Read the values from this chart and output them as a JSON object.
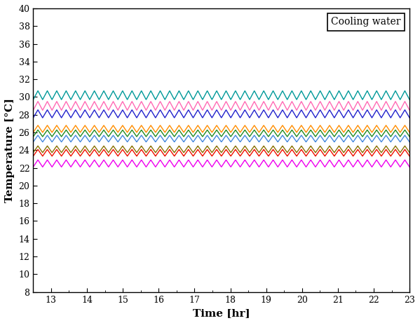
{
  "title": "",
  "xlabel": "Time [hr]",
  "ylabel": "Temperature [°C]",
  "xlim": [
    12.5,
    23
  ],
  "ylim": [
    8,
    40
  ],
  "yticks": [
    8,
    10,
    12,
    14,
    16,
    18,
    20,
    22,
    24,
    26,
    28,
    30,
    32,
    34,
    36,
    38,
    40
  ],
  "xticks": [
    13,
    14,
    15,
    16,
    17,
    18,
    19,
    20,
    21,
    22,
    23
  ],
  "legend_text": "Cooling water",
  "legend_loc": "upper right",
  "lines": [
    {
      "base": 30.2,
      "amp": 0.5,
      "color": "#009999",
      "lw": 1.0
    },
    {
      "base": 29.0,
      "amp": 0.5,
      "color": "#FF69B4",
      "lw": 1.0
    },
    {
      "base": 28.1,
      "amp": 0.45,
      "color": "#2222CC",
      "lw": 1.0
    },
    {
      "base": 26.4,
      "amp": 0.4,
      "color": "#FF8C00",
      "lw": 1.0
    },
    {
      "base": 25.9,
      "amp": 0.38,
      "color": "#228B22",
      "lw": 1.0
    },
    {
      "base": 25.3,
      "amp": 0.38,
      "color": "#4488DD",
      "lw": 1.0
    },
    {
      "base": 24.1,
      "amp": 0.38,
      "color": "#8B7000",
      "lw": 1.0
    },
    {
      "base": 23.7,
      "amp": 0.38,
      "color": "#EE1100",
      "lw": 1.0
    },
    {
      "base": 22.5,
      "amp": 0.4,
      "color": "#EE00EE",
      "lw": 1.0
    }
  ],
  "background_color": "#FFFFFF",
  "n_cycles": 40,
  "n_points": 2000
}
